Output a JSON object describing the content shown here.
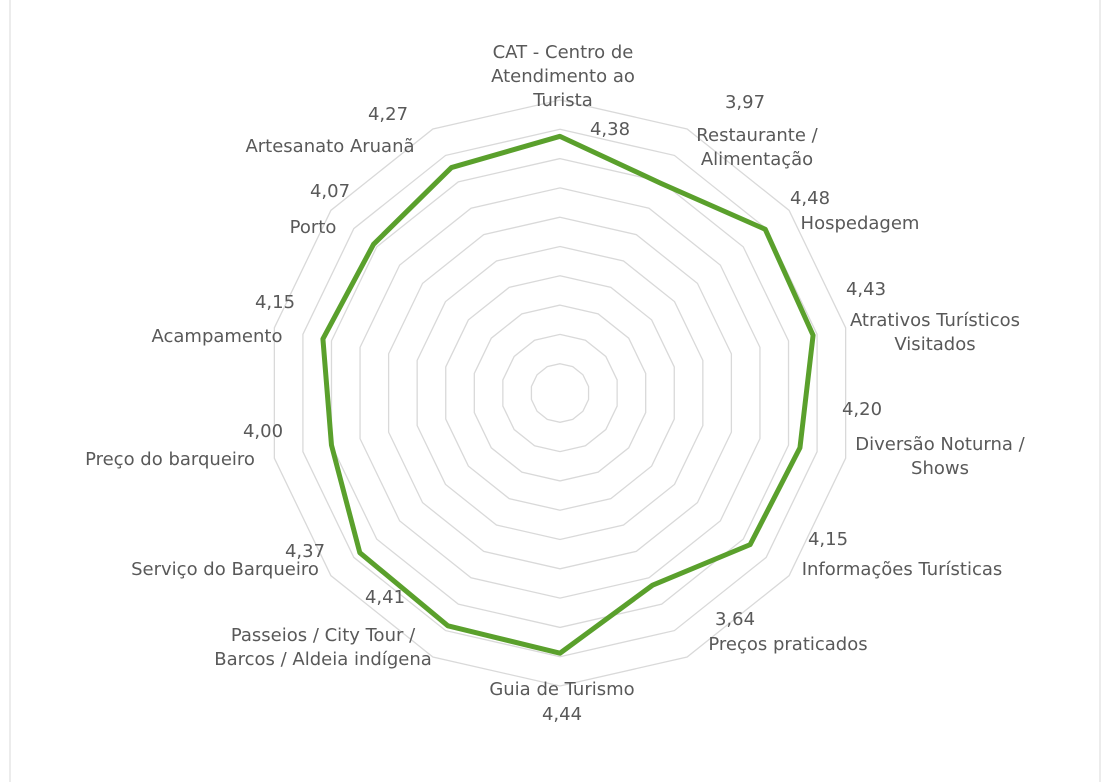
{
  "chart_data": {
    "type": "radar",
    "categories": [
      "CAT - Centro de Atendimento ao Turista",
      "Restaurante / Alimentação",
      "Hospedagem",
      "Atrativos Turísticos Visitados",
      "Diversão Noturna / Shows",
      "Informações Turísticas",
      "Preços praticados",
      "Guia de Turismo",
      "Passeios / City Tour / Barcos / Aldeia indígena",
      "Serviço do Barqueiro",
      "Preço do barqueiro",
      "Acampamento",
      "Porto",
      "Artesanato Aruanã"
    ],
    "values": [
      4.38,
      3.97,
      4.48,
      4.43,
      4.2,
      4.15,
      3.64,
      4.44,
      4.41,
      4.37,
      4.0,
      4.15,
      4.07,
      4.27
    ],
    "value_labels": [
      "4,38",
      "3,97",
      "4,48",
      "4,43",
      "4,20",
      "4,15",
      "3,64",
      "4,44",
      "4,41",
      "4,37",
      "4,00",
      "4,15",
      "4,07",
      "4,27"
    ],
    "color": "#5aa02c",
    "ylim": [
      0,
      5
    ],
    "yticks": [
      0,
      0.5,
      1,
      1.5,
      2,
      2.5,
      3,
      3.5,
      4,
      4.5,
      5
    ],
    "grid": true
  }
}
